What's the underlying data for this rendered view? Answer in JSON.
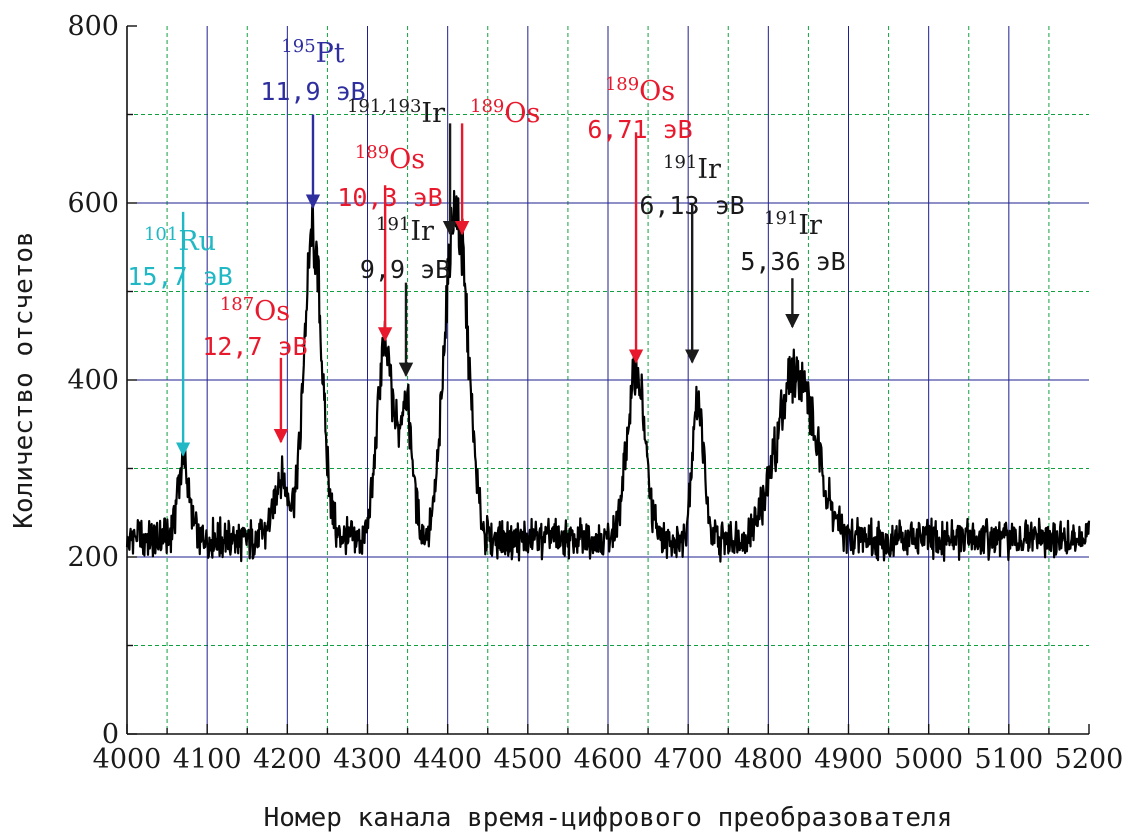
{
  "chart_data": {
    "type": "line",
    "xlabel": "Номер канала время-цифрового преобразователя",
    "ylabel": "Количество отсчетов",
    "xlim": [
      4000,
      5200
    ],
    "ylim": [
      0,
      800
    ],
    "x_ticks": [
      "4000",
      "4100",
      "4200",
      "4300",
      "4400",
      "4500",
      "4600",
      "4700",
      "4800",
      "4900",
      "5000",
      "5100",
      "5200"
    ],
    "y_ticks": [
      "0",
      "200",
      "400",
      "600",
      "800"
    ],
    "grid": true,
    "colors": {
      "trace": "#000000",
      "major_grid": "#1f1f8f",
      "minor_grid": "#11a040",
      "Ru": "#1fb8c4",
      "Pt": "#2e2e9e",
      "Os": "#e8192c",
      "Ir": "#1a1a1a"
    },
    "baseline": 220,
    "peaks": [
      {
        "x": 4070,
        "height": 85,
        "width": 7
      },
      {
        "x": 4192,
        "height": 70,
        "width": 9
      },
      {
        "x": 4232,
        "height": 345,
        "width": 11
      },
      {
        "x": 4322,
        "height": 215,
        "width": 10
      },
      {
        "x": 4348,
        "height": 150,
        "width": 8
      },
      {
        "x": 4402,
        "height": 230,
        "width": 10
      },
      {
        "x": 4418,
        "height": 260,
        "width": 11
      },
      {
        "x": 4635,
        "height": 190,
        "width": 11
      },
      {
        "x": 4712,
        "height": 160,
        "width": 7
      },
      {
        "x": 4835,
        "height": 190,
        "width": 24
      }
    ],
    "annotations": [
      {
        "sup": "101",
        "elem": "Ru",
        "energy": "15,7 эВ",
        "color": "Ru",
        "arrow_x": 4070,
        "arrow_from": 590,
        "arrow_to": 315
      },
      {
        "sup": "187",
        "elem": "Os",
        "energy": "12,7 эВ",
        "color": "Os",
        "arrow_x": 4192,
        "arrow_from": 425,
        "arrow_to": 330
      },
      {
        "sup": "195",
        "elem": "Pt",
        "energy": "11,9 эВ",
        "color": "Pt",
        "arrow_x": 4232,
        "arrow_from": 700,
        "arrow_to": 595
      },
      {
        "sup": "189",
        "elem": "Os",
        "energy": "10,3 эВ",
        "color": "Os",
        "arrow_x": 4322,
        "arrow_from": 620,
        "arrow_to": 445
      },
      {
        "sup": "191",
        "elem": "Ir",
        "energy": "9,9 эВ",
        "color": "Ir",
        "arrow_x": 4348,
        "arrow_from": 510,
        "arrow_to": 405
      },
      {
        "sup": "191,193",
        "elem": "Ir",
        "energy": "",
        "color": "Ir",
        "arrow_x": 4403,
        "arrow_from": 690,
        "arrow_to": 565
      },
      {
        "sup": "189",
        "elem": "Os",
        "energy": "",
        "color": "Os",
        "arrow_x": 4418,
        "arrow_from": 690,
        "arrow_to": 565
      },
      {
        "sup": "189",
        "elem": "Os",
        "energy": "6,71 эВ",
        "color": "Os",
        "arrow_x": 4635,
        "arrow_from": 680,
        "arrow_to": 420
      },
      {
        "sup": "191",
        "elem": "Ir",
        "energy": "6,13 эВ",
        "color": "Ir",
        "arrow_x": 4705,
        "arrow_from": 600,
        "arrow_to": 420
      },
      {
        "sup": "191",
        "elem": "Ir",
        "energy": "5,36 эВ",
        "color": "Ir",
        "arrow_x": 4830,
        "arrow_from": 515,
        "arrow_to": 460
      }
    ]
  }
}
